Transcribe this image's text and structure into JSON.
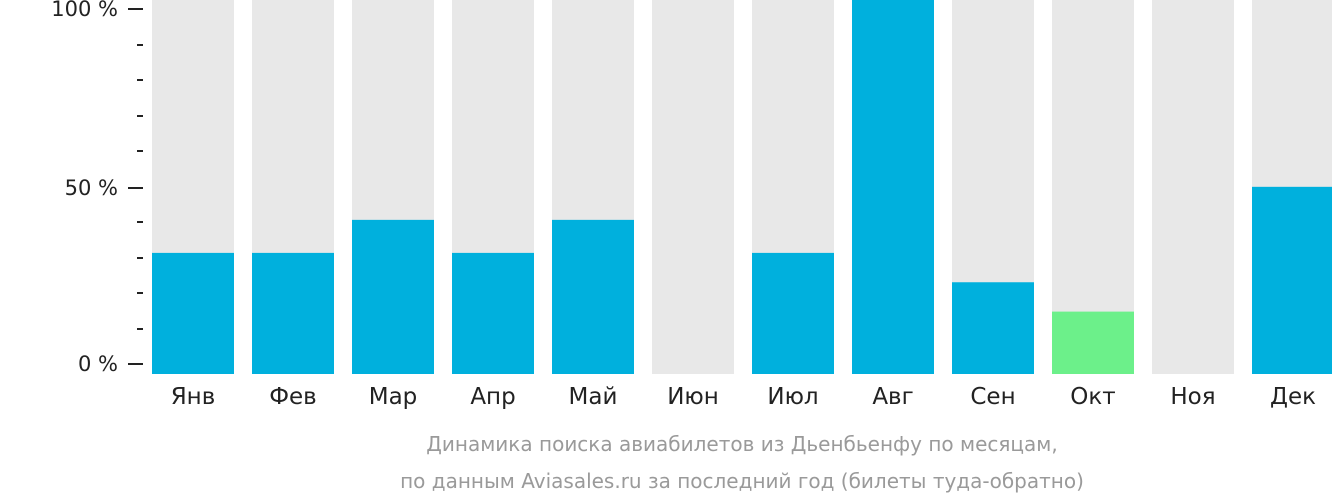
{
  "chart_data": {
    "type": "bar",
    "categories": [
      "Янв",
      "Фев",
      "Мар",
      "Апр",
      "Май",
      "Июн",
      "Июл",
      "Авг",
      "Сен",
      "Окт",
      "Ноя",
      "Дек"
    ],
    "values": [
      33,
      33,
      42,
      33,
      42,
      0,
      33,
      100,
      25,
      17,
      0,
      51
    ],
    "highlight_index": 9,
    "ylim": [
      0,
      100
    ],
    "yticks": [
      {
        "value": 0,
        "label": "0 %"
      },
      {
        "value": 50,
        "label": "50 %"
      },
      {
        "value": 100,
        "label": "100 %"
      }
    ],
    "minor_tick_step": 10,
    "caption_line1": "Динамика поиска авиабилетов из Дьенбьенфу по месяцам,",
    "caption_line2": "по данным Aviasales.ru за последний год (билеты туда-обратно)",
    "colors": {
      "bar": "#00b0dd",
      "highlight": "#6cf08a",
      "track": "#e8e8e8",
      "axis": "#222222",
      "caption": "#9a9a9a"
    },
    "grid": false,
    "legend": "none"
  }
}
